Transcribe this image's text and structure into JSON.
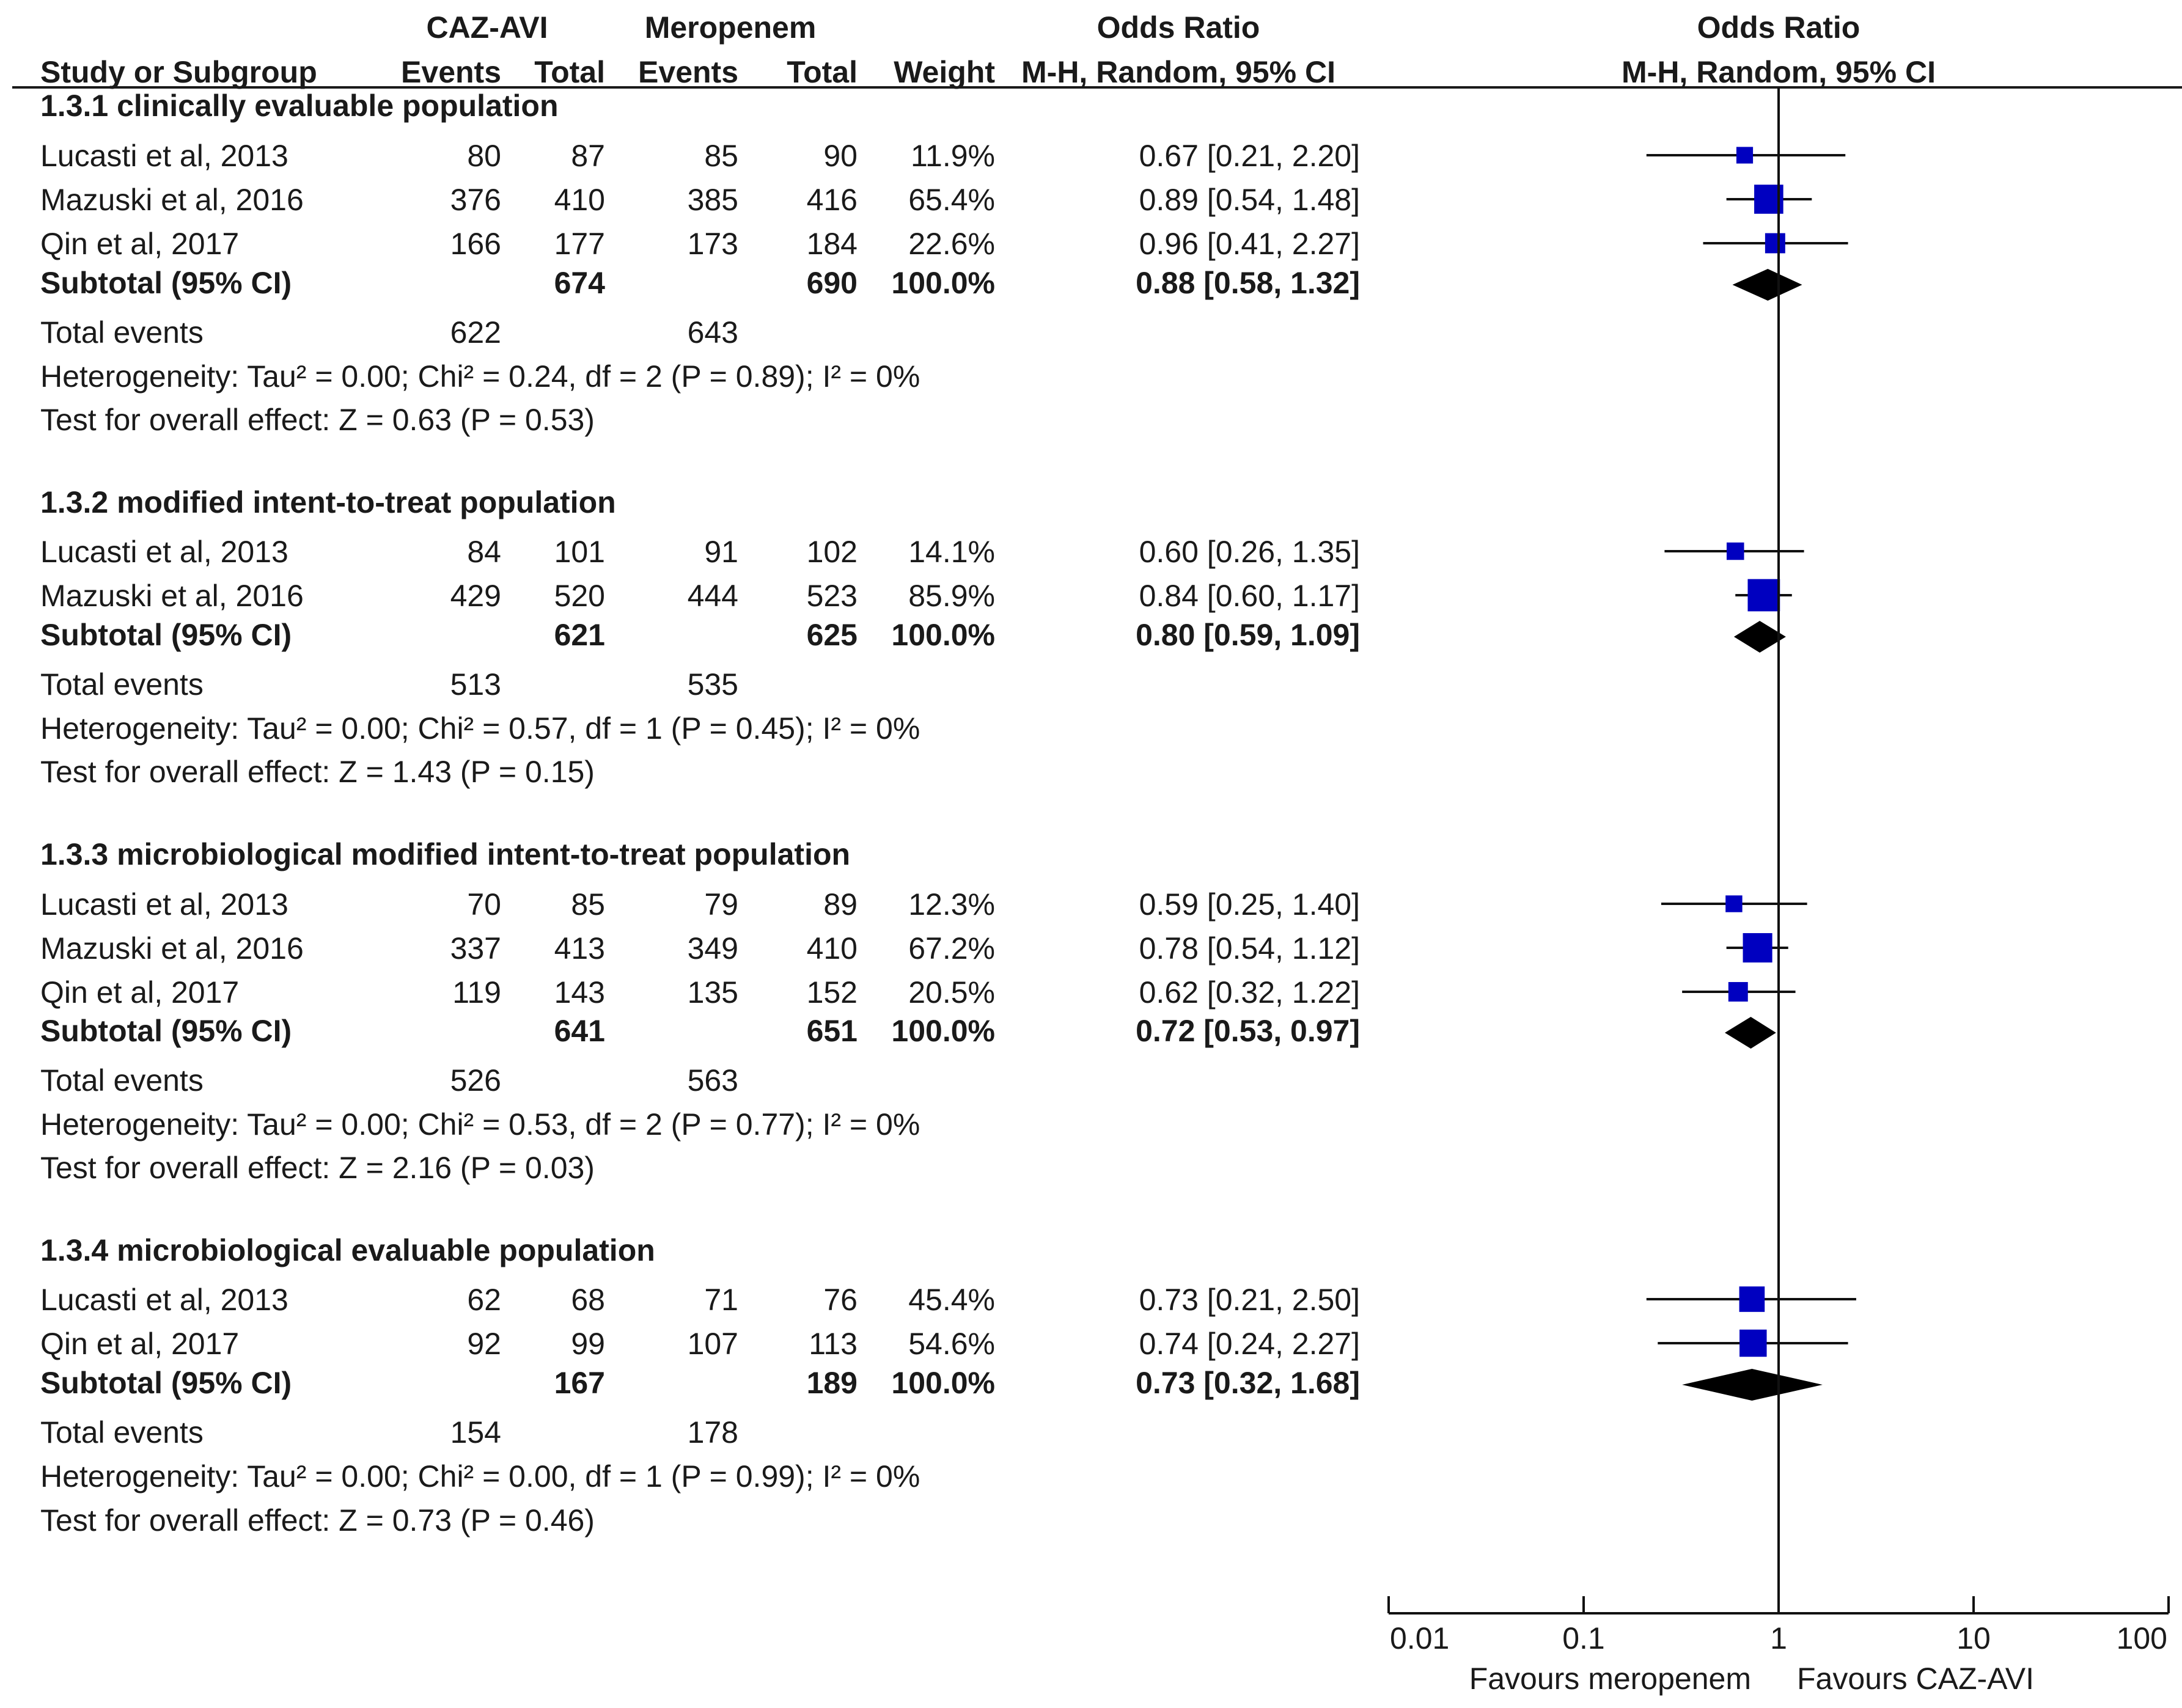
{
  "chart_data": {
    "type": "forest",
    "header": {
      "group1": "CAZ-AVI",
      "group2": "Meropenem",
      "or_title": "Odds Ratio",
      "or_method": "M-H, Random, 95% CI",
      "plot_title": "Odds Ratio",
      "plot_method": "M-H, Random, 95% CI",
      "columns": [
        "Study or Subgroup",
        "Events",
        "Total",
        "Events",
        "Total",
        "Weight"
      ]
    },
    "groups": [
      {
        "title": "1.3.1 clinically evaluable population",
        "studies": [
          {
            "name": "Lucasti et al, 2013",
            "e1": "80",
            "t1": "87",
            "e2": "85",
            "t2": "90",
            "weight": "11.9%",
            "ci_text": "0.67 [0.21, 2.20]",
            "or": 0.67,
            "lo": 0.21,
            "hi": 2.2
          },
          {
            "name": "Mazuski et al, 2016",
            "e1": "376",
            "t1": "410",
            "e2": "385",
            "t2": "416",
            "weight": "65.4%",
            "ci_text": "0.89 [0.54, 1.48]",
            "or": 0.89,
            "lo": 0.54,
            "hi": 1.48
          },
          {
            "name": "Qin et al, 2017",
            "e1": "166",
            "t1": "177",
            "e2": "173",
            "t2": "184",
            "weight": "22.6%",
            "ci_text": "0.96 [0.41, 2.27]",
            "or": 0.96,
            "lo": 0.41,
            "hi": 2.27
          }
        ],
        "subtotal": {
          "label": "Subtotal (95% CI)",
          "t1": "674",
          "t2": "690",
          "weight": "100.0%",
          "ci_text": "0.88 [0.58, 1.32]",
          "or": 0.88,
          "lo": 0.58,
          "hi": 1.32
        },
        "total_events": {
          "label": "Total events",
          "e1": "622",
          "e2": "643"
        },
        "heterogeneity": "Heterogeneity: Tau² = 0.00; Chi² = 0.24, df = 2 (P = 0.89); I² = 0%",
        "overall": "Test for overall effect: Z = 0.63 (P = 0.53)"
      },
      {
        "title": "1.3.2 modified intent-to-treat population",
        "studies": [
          {
            "name": "Lucasti et al, 2013",
            "e1": "84",
            "t1": "101",
            "e2": "91",
            "t2": "102",
            "weight": "14.1%",
            "ci_text": "0.60 [0.26, 1.35]",
            "or": 0.6,
            "lo": 0.26,
            "hi": 1.35
          },
          {
            "name": "Mazuski et al, 2016",
            "e1": "429",
            "t1": "520",
            "e2": "444",
            "t2": "523",
            "weight": "85.9%",
            "ci_text": "0.84 [0.60, 1.17]",
            "or": 0.84,
            "lo": 0.6,
            "hi": 1.17
          }
        ],
        "subtotal": {
          "label": "Subtotal (95% CI)",
          "t1": "621",
          "t2": "625",
          "weight": "100.0%",
          "ci_text": "0.80 [0.59, 1.09]",
          "or": 0.8,
          "lo": 0.59,
          "hi": 1.09
        },
        "total_events": {
          "label": "Total events",
          "e1": "513",
          "e2": "535"
        },
        "heterogeneity": "Heterogeneity: Tau² = 0.00; Chi² = 0.57, df = 1 (P = 0.45); I² = 0%",
        "overall": "Test for overall effect: Z = 1.43 (P = 0.15)"
      },
      {
        "title": "1.3.3 microbiological modified intent-to-treat population",
        "studies": [
          {
            "name": "Lucasti et al, 2013",
            "e1": "70",
            "t1": "85",
            "e2": "79",
            "t2": "89",
            "weight": "12.3%",
            "ci_text": "0.59 [0.25, 1.40]",
            "or": 0.59,
            "lo": 0.25,
            "hi": 1.4
          },
          {
            "name": "Mazuski et al, 2016",
            "e1": "337",
            "t1": "413",
            "e2": "349",
            "t2": "410",
            "weight": "67.2%",
            "ci_text": "0.78 [0.54, 1.12]",
            "or": 0.78,
            "lo": 0.54,
            "hi": 1.12
          },
          {
            "name": "Qin et al, 2017",
            "e1": "119",
            "t1": "143",
            "e2": "135",
            "t2": "152",
            "weight": "20.5%",
            "ci_text": "0.62 [0.32, 1.22]",
            "or": 0.62,
            "lo": 0.32,
            "hi": 1.22
          }
        ],
        "subtotal": {
          "label": "Subtotal (95% CI)",
          "t1": "641",
          "t2": "651",
          "weight": "100.0%",
          "ci_text": "0.72 [0.53, 0.97]",
          "or": 0.72,
          "lo": 0.53,
          "hi": 0.97
        },
        "total_events": {
          "label": "Total events",
          "e1": "526",
          "e2": "563"
        },
        "heterogeneity": "Heterogeneity: Tau² = 0.00; Chi² = 0.53, df = 2 (P = 0.77); I² = 0%",
        "overall": "Test for overall effect: Z = 2.16 (P = 0.03)"
      },
      {
        "title": "1.3.4 microbiological evaluable population",
        "studies": [
          {
            "name": "Lucasti et al, 2013",
            "e1": "62",
            "t1": "68",
            "e2": "71",
            "t2": "76",
            "weight": "45.4%",
            "ci_text": "0.73 [0.21, 2.50]",
            "or": 0.73,
            "lo": 0.21,
            "hi": 2.5
          },
          {
            "name": "Qin et al, 2017",
            "e1": "92",
            "t1": "99",
            "e2": "107",
            "t2": "113",
            "weight": "54.6%",
            "ci_text": "0.74 [0.24, 2.27]",
            "or": 0.74,
            "lo": 0.24,
            "hi": 2.27
          }
        ],
        "subtotal": {
          "label": "Subtotal (95% CI)",
          "t1": "167",
          "t2": "189",
          "weight": "100.0%",
          "ci_text": "0.73 [0.32, 1.68]",
          "or": 0.73,
          "lo": 0.32,
          "hi": 1.68
        },
        "total_events": {
          "label": "Total events",
          "e1": "154",
          "e2": "178"
        },
        "heterogeneity": "Heterogeneity: Tau² = 0.00; Chi² = 0.00, df = 1 (P = 0.99); I² = 0%",
        "overall": "Test for overall effect: Z = 0.73 (P = 0.46)"
      }
    ],
    "x_axis": {
      "scale": "log",
      "range": [
        0.01,
        100
      ],
      "ticks": [
        0.01,
        0.1,
        1,
        10,
        100
      ],
      "tick_labels": [
        "0.01",
        "0.1",
        "1",
        "10",
        "100"
      ],
      "favours_left": "Favours meropenem",
      "favours_right": "Favours CAZ-AVI"
    },
    "colors": {
      "study_marker": "#0000c0",
      "summary_diamond": "#000000",
      "text": "#1a1a1a"
    }
  }
}
